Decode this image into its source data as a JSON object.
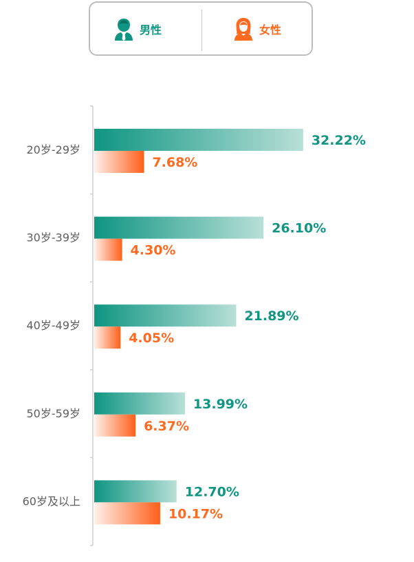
{
  "legend": {
    "male_label": "男性",
    "female_label": "女性",
    "male_icon": "male-user-icon",
    "female_icon": "female-user-icon"
  },
  "colors": {
    "male": "#0f9582",
    "male_light": "#b8dfd7",
    "female": "#ff5f1a",
    "female_light": "#fff1ea",
    "axis": "#cfcfcf",
    "tick_text": "#5e5e5e"
  },
  "chart_data": {
    "type": "bar",
    "orientation": "horizontal",
    "categories": [
      "20岁-29岁",
      "30岁-39岁",
      "40岁-49岁",
      "50岁-59岁",
      "60岁及以上"
    ],
    "series": [
      {
        "name": "男性",
        "values": [
          32.22,
          26.1,
          21.89,
          13.99,
          12.7
        ],
        "labels": [
          "32.22%",
          "26.10%",
          "21.89%",
          "13.99%",
          "12.70%"
        ]
      },
      {
        "name": "女性",
        "values": [
          7.68,
          4.3,
          4.05,
          6.37,
          10.17
        ],
        "labels": [
          "7.68%",
          "4.30%",
          "4.05%",
          "6.37%",
          "10.17%"
        ]
      }
    ],
    "xlim": [
      0,
      40
    ],
    "grid": false,
    "legend_position": "top"
  }
}
